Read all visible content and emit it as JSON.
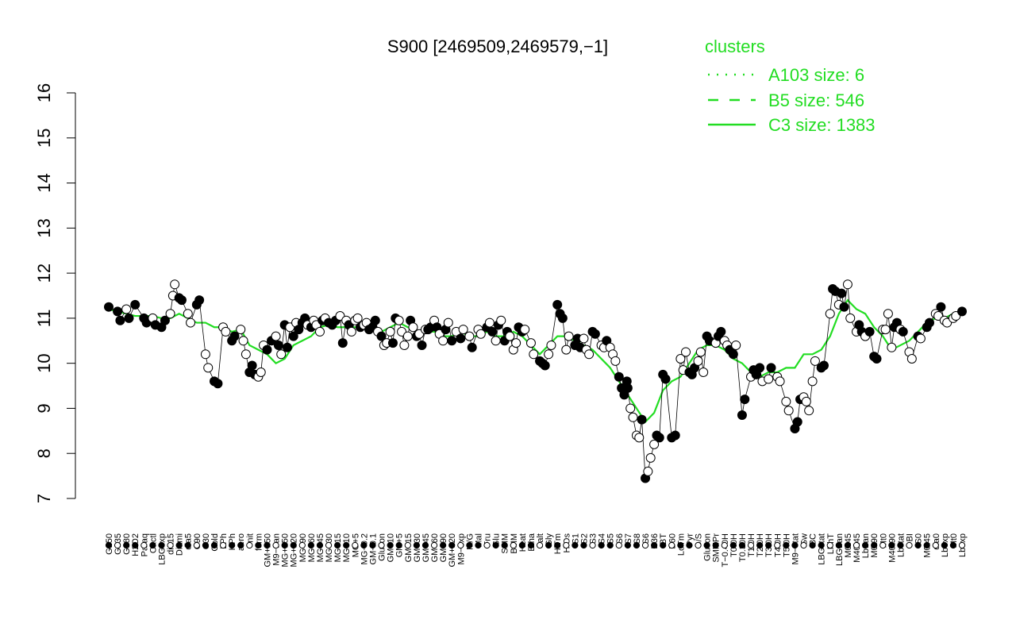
{
  "chart_data": {
    "type": "line",
    "title": "S900 [2469509,2469579,−1]",
    "xlabel": "",
    "ylabel": "",
    "ylim": [
      7,
      16
    ],
    "yticks": [
      "7",
      "8",
      "9",
      "10",
      "11",
      "12",
      "13",
      "14",
      "15",
      "16"
    ],
    "grid": false,
    "legend": {
      "title": "clusters",
      "placement": "top-right",
      "color": "#22dd22",
      "entries": [
        {
          "label": "A103 size: 6",
          "style": "dotted"
        },
        {
          "label": "B5 size: 546",
          "style": "dashed"
        },
        {
          "label": "C3 size: 1383",
          "style": "solid"
        }
      ]
    },
    "x_tick_labels": [
      "G150",
      "G135",
      "G180",
      "H2O2",
      "Paraq",
      "Oxctl",
      "LBGexp",
      "dia15",
      "Diami",
      "dia5",
      "C90",
      "C30",
      "Cold",
      "LPh",
      "HPh",
      "aero",
      "nit",
      "ferm",
      "GM+150",
      "M9−tran",
      "MG+150",
      "MG+120",
      "MG+90",
      "MG+60",
      "MG+45",
      "MG+30",
      "MG+15",
      "MG+10",
      "MG+5",
      "MG−0.2",
      "GM−0.1",
      "Glucon",
      "GM+10",
      "GM+5",
      "GM+15",
      "GM+30",
      "GM+45",
      "GM+60",
      "GM+90",
      "GM+120",
      "M9−exp",
      "M/G",
      "Mal",
      "Fru",
      "Glu",
      "SMM",
      "BMM",
      "Heat",
      "Etha",
      "Salt",
      "Gly",
      "HiTm",
      "HiOs",
      "S1",
      "S2",
      "S3",
      "S4",
      "S5",
      "S6",
      "S7",
      "S8",
      "S6",
      "B36",
      "BT",
      "B60",
      "LoTm",
      "Pyr",
      "G/S",
      "Glucon",
      "SMMPr",
      "T−0.40H",
      "T0.0H",
      "T0.30H",
      "T1.0H",
      "T2.0H",
      "T3.0H",
      "T4.0H",
      "T5.0H",
      "M9−stat",
      "Sw",
      "BC",
      "LBGstat",
      "LPhT",
      "LBGtran",
      "M0t45",
      "M40t45",
      "Lbtran",
      "M0t90",
      "Mt0",
      "M40t90",
      "Lbstat",
      "BI",
      "S0",
      "M0t45",
      "dia0",
      "Lbexp",
      "Mt0",
      "Lbexp"
    ],
    "series": [
      {
        "color": "#22dd22",
        "values": [
          11.2,
          11.15,
          11.1,
          11.05,
          11.05,
          11.05,
          11.0,
          11.0,
          11.1,
          11.0,
          10.9,
          10.9,
          10.8,
          10.8,
          10.7,
          10.75,
          10.4,
          10.3,
          10.2,
          10.0,
          10.1,
          10.4,
          10.5,
          10.6,
          10.8,
          10.85,
          10.8,
          10.8,
          10.8,
          10.8,
          10.8,
          10.7,
          10.8,
          10.9,
          10.8,
          10.7,
          10.7,
          10.7,
          10.6,
          10.6,
          10.7,
          10.6,
          10.6,
          10.7,
          10.6,
          10.6,
          10.7,
          10.6,
          10.4,
          10.2,
          10.4,
          10.6,
          10.6,
          10.5,
          10.4,
          10.3,
          10.1,
          9.9,
          9.6,
          9.3,
          9.0,
          8.7,
          8.9,
          9.4,
          9.6,
          9.7,
          10.0,
          10.3,
          10.4,
          10.4,
          10.3,
          10.1,
          10.0,
          9.8,
          9.7,
          9.8,
          9.8,
          9.9,
          9.9,
          10.2,
          10.2,
          10.3,
          10.6,
          11.1,
          11.4,
          11.2,
          11.1,
          10.8,
          10.6,
          10.3,
          10.4,
          10.5,
          10.7,
          10.9,
          11.0,
          11.0,
          11.1,
          11.1
        ]
      }
    ],
    "points": [
      [
        0,
        11.25,
        1
      ],
      [
        1,
        11.15,
        1
      ],
      [
        1.3,
        10.95,
        1
      ],
      [
        2,
        11.2,
        0
      ],
      [
        2.3,
        11.0,
        1
      ],
      [
        3,
        11.3,
        1
      ],
      [
        4,
        11.0,
        1
      ],
      [
        4.3,
        10.9,
        1
      ],
      [
        5,
        11.0,
        0
      ],
      [
        5.3,
        10.85,
        1
      ],
      [
        6,
        10.8,
        1
      ],
      [
        6.4,
        10.95,
        1
      ],
      [
        7,
        11.1,
        0
      ],
      [
        7.3,
        11.5,
        0
      ],
      [
        7.5,
        11.75,
        0
      ],
      [
        8,
        11.45,
        1
      ],
      [
        8.3,
        11.4,
        1
      ],
      [
        9,
        11.1,
        0
      ],
      [
        9.3,
        10.9,
        0
      ],
      [
        10,
        11.3,
        1
      ],
      [
        10.3,
        11.4,
        1
      ],
      [
        11,
        10.2,
        0
      ],
      [
        11.3,
        9.9,
        0
      ],
      [
        12,
        9.6,
        1
      ],
      [
        12.4,
        9.55,
        1
      ],
      [
        13,
        10.8,
        0
      ],
      [
        13.3,
        10.7,
        0
      ],
      [
        14,
        10.5,
        1
      ],
      [
        14.3,
        10.6,
        1
      ],
      [
        15,
        10.75,
        0
      ],
      [
        15.3,
        10.5,
        0
      ],
      [
        15.6,
        10.2,
        0
      ],
      [
        16,
        9.8,
        1
      ],
      [
        16.3,
        9.95,
        1
      ],
      [
        16.6,
        9.75,
        1
      ],
      [
        17,
        9.7,
        0
      ],
      [
        17.3,
        9.8,
        0
      ],
      [
        17.6,
        10.4,
        0
      ],
      [
        18,
        10.3,
        1
      ],
      [
        18.5,
        10.5,
        1
      ],
      [
        19,
        10.6,
        0
      ],
      [
        19.3,
        10.4,
        1
      ],
      [
        19.6,
        10.2,
        0
      ],
      [
        20,
        10.85,
        1
      ],
      [
        20.3,
        10.35,
        1
      ],
      [
        20.6,
        10.8,
        0
      ],
      [
        21,
        10.6,
        1
      ],
      [
        21.3,
        10.9,
        0
      ],
      [
        21.6,
        10.75,
        1
      ],
      [
        22,
        10.9,
        1
      ],
      [
        22.3,
        11.0,
        1
      ],
      [
        22.6,
        10.85,
        0
      ],
      [
        23,
        10.8,
        1
      ],
      [
        23.3,
        10.95,
        0
      ],
      [
        23.6,
        10.85,
        0
      ],
      [
        24,
        10.7,
        0
      ],
      [
        24.3,
        10.95,
        1
      ],
      [
        24.6,
        11.0,
        0
      ],
      [
        25,
        10.9,
        1
      ],
      [
        25.4,
        10.85,
        1
      ],
      [
        25.8,
        10.95,
        1
      ],
      [
        26.3,
        11.05,
        0
      ],
      [
        26.6,
        10.45,
        1
      ],
      [
        27,
        10.95,
        0
      ],
      [
        27.3,
        10.85,
        1
      ],
      [
        27.6,
        10.7,
        0
      ],
      [
        28,
        10.95,
        0
      ],
      [
        28.3,
        11.0,
        0
      ],
      [
        28.6,
        10.8,
        1
      ],
      [
        29,
        10.85,
        0
      ],
      [
        29.3,
        10.9,
        0
      ],
      [
        29.6,
        10.75,
        1
      ],
      [
        30,
        10.8,
        1
      ],
      [
        30.3,
        10.95,
        1
      ],
      [
        30.6,
        10.7,
        0
      ],
      [
        31,
        10.6,
        1
      ],
      [
        31.3,
        10.4,
        0
      ],
      [
        31.6,
        10.45,
        0
      ],
      [
        32,
        10.7,
        0
      ],
      [
        32.3,
        10.45,
        1
      ],
      [
        32.6,
        11.0,
        1
      ],
      [
        33,
        10.95,
        0
      ],
      [
        33.3,
        10.7,
        0
      ],
      [
        33.6,
        10.4,
        0
      ],
      [
        34,
        10.6,
        0
      ],
      [
        34.3,
        10.95,
        1
      ],
      [
        34.6,
        10.8,
        0
      ],
      [
        35,
        10.6,
        1
      ],
      [
        35.3,
        10.65,
        0
      ],
      [
        35.6,
        10.4,
        1
      ],
      [
        36,
        10.75,
        0
      ],
      [
        36.3,
        10.75,
        1
      ],
      [
        36.6,
        10.8,
        1
      ],
      [
        37,
        10.95,
        0
      ],
      [
        37.3,
        10.8,
        1
      ],
      [
        37.6,
        10.65,
        0
      ],
      [
        38,
        10.5,
        0
      ],
      [
        38.3,
        10.75,
        1
      ],
      [
        38.6,
        10.9,
        0
      ],
      [
        39,
        10.5,
        1
      ],
      [
        39.5,
        10.7,
        0
      ],
      [
        40,
        10.55,
        1
      ],
      [
        40.3,
        10.75,
        0
      ],
      [
        41,
        10.6,
        0
      ],
      [
        41.3,
        10.35,
        1
      ],
      [
        42,
        10.75,
        0
      ],
      [
        42.3,
        10.65,
        0
      ],
      [
        43,
        10.8,
        1
      ],
      [
        43.3,
        10.9,
        0
      ],
      [
        43.6,
        10.7,
        1
      ],
      [
        44,
        10.5,
        0
      ],
      [
        44.3,
        10.85,
        1
      ],
      [
        44.6,
        10.95,
        0
      ],
      [
        45,
        10.5,
        1
      ],
      [
        45.3,
        10.7,
        1
      ],
      [
        45.6,
        10.6,
        0
      ],
      [
        46,
        10.3,
        0
      ],
      [
        46.3,
        10.45,
        0
      ],
      [
        46.6,
        10.8,
        1
      ],
      [
        47,
        10.7,
        1
      ],
      [
        47.3,
        10.75,
        0
      ],
      [
        48,
        10.45,
        0
      ],
      [
        48.3,
        10.2,
        0
      ],
      [
        49,
        10.05,
        1
      ],
      [
        49.3,
        10.0,
        1
      ],
      [
        49.6,
        9.95,
        1
      ],
      [
        50,
        10.2,
        0
      ],
      [
        50.3,
        10.4,
        0
      ],
      [
        51,
        11.3,
        1
      ],
      [
        51.3,
        11.1,
        1
      ],
      [
        51.6,
        11.0,
        1
      ],
      [
        52,
        10.3,
        0
      ],
      [
        52.3,
        10.6,
        0
      ],
      [
        53,
        10.4,
        1
      ],
      [
        53.3,
        10.55,
        1
      ],
      [
        53.6,
        10.35,
        1
      ],
      [
        54,
        10.55,
        0
      ],
      [
        54.3,
        10.3,
        0
      ],
      [
        54.6,
        10.2,
        0
      ],
      [
        55,
        10.7,
        1
      ],
      [
        55.3,
        10.65,
        1
      ],
      [
        56,
        10.4,
        0
      ],
      [
        56.3,
        10.35,
        0
      ],
      [
        56.6,
        10.5,
        1
      ],
      [
        57,
        10.35,
        0
      ],
      [
        57.3,
        10.2,
        0
      ],
      [
        57.6,
        10.05,
        0
      ],
      [
        58,
        9.7,
        1
      ],
      [
        58.3,
        9.45,
        1
      ],
      [
        58.6,
        9.3,
        1
      ],
      [
        58.9,
        9.6,
        1
      ],
      [
        59,
        9.45,
        1
      ],
      [
        59.3,
        9.0,
        0
      ],
      [
        59.6,
        8.8,
        0
      ],
      [
        60,
        8.4,
        0
      ],
      [
        60.3,
        8.35,
        0
      ],
      [
        60.6,
        8.75,
        1
      ],
      [
        61,
        7.45,
        1
      ],
      [
        61.3,
        7.6,
        0
      ],
      [
        61.6,
        7.9,
        0
      ],
      [
        62,
        8.2,
        0
      ],
      [
        62.3,
        8.4,
        1
      ],
      [
        62.6,
        8.35,
        1
      ],
      [
        63,
        9.75,
        1
      ],
      [
        63.3,
        9.65,
        1
      ],
      [
        64,
        8.35,
        1
      ],
      [
        64.4,
        8.4,
        1
      ],
      [
        65,
        10.1,
        0
      ],
      [
        65.3,
        9.85,
        0
      ],
      [
        65.6,
        10.25,
        0
      ],
      [
        66,
        9.8,
        1
      ],
      [
        66.3,
        9.75,
        1
      ],
      [
        66.6,
        9.9,
        1
      ],
      [
        67,
        10.05,
        0
      ],
      [
        67.3,
        10.25,
        0
      ],
      [
        67.6,
        9.8,
        0
      ],
      [
        68,
        10.6,
        1
      ],
      [
        68.3,
        10.5,
        1
      ],
      [
        69,
        10.45,
        0
      ],
      [
        69.3,
        10.6,
        1
      ],
      [
        69.6,
        10.7,
        1
      ],
      [
        70,
        10.5,
        0
      ],
      [
        70.3,
        10.4,
        0
      ],
      [
        70.6,
        10.3,
        1
      ],
      [
        71,
        10.2,
        1
      ],
      [
        71.3,
        10.4,
        0
      ],
      [
        72,
        8.85,
        1
      ],
      [
        72.3,
        9.2,
        1
      ],
      [
        73,
        9.7,
        0
      ],
      [
        73.3,
        9.85,
        1
      ],
      [
        73.6,
        9.75,
        1
      ],
      [
        74,
        9.9,
        1
      ],
      [
        74.3,
        9.6,
        0
      ],
      [
        75,
        9.65,
        0
      ],
      [
        75.3,
        9.9,
        1
      ],
      [
        76,
        9.7,
        0
      ],
      [
        76.3,
        9.6,
        0
      ],
      [
        77,
        9.15,
        0
      ],
      [
        77.3,
        8.95,
        0
      ],
      [
        78,
        8.55,
        1
      ],
      [
        78.3,
        8.7,
        1
      ],
      [
        78.6,
        9.2,
        1
      ],
      [
        79,
        9.25,
        0
      ],
      [
        79.3,
        9.15,
        0
      ],
      [
        79.6,
        8.95,
        0
      ],
      [
        80,
        9.6,
        0
      ],
      [
        80.3,
        10.05,
        0
      ],
      [
        81,
        9.9,
        1
      ],
      [
        81.3,
        9.95,
        1
      ],
      [
        82,
        11.1,
        0
      ],
      [
        82.3,
        11.65,
        1
      ],
      [
        82.6,
        11.6,
        1
      ],
      [
        83,
        11.3,
        0
      ],
      [
        83.3,
        11.55,
        1
      ],
      [
        83.6,
        11.25,
        1
      ],
      [
        84,
        11.75,
        0
      ],
      [
        84.3,
        11.0,
        0
      ],
      [
        85,
        10.7,
        0
      ],
      [
        85.3,
        10.85,
        1
      ],
      [
        85.6,
        10.7,
        1
      ],
      [
        86,
        10.6,
        0
      ],
      [
        86.5,
        10.7,
        1
      ],
      [
        87,
        10.15,
        1
      ],
      [
        87.3,
        10.1,
        1
      ],
      [
        88,
        10.75,
        0
      ],
      [
        88.3,
        10.75,
        0
      ],
      [
        88.6,
        11.1,
        0
      ],
      [
        89,
        10.35,
        0
      ],
      [
        89.3,
        10.8,
        1
      ],
      [
        89.6,
        10.9,
        1
      ],
      [
        90,
        10.75,
        0
      ],
      [
        90.3,
        10.7,
        1
      ],
      [
        91,
        10.25,
        0
      ],
      [
        91.3,
        10.1,
        0
      ],
      [
        92,
        10.6,
        1
      ],
      [
        92.3,
        10.55,
        0
      ],
      [
        93,
        10.8,
        1
      ],
      [
        93.3,
        10.9,
        1
      ],
      [
        94,
        11.1,
        0
      ],
      [
        94.3,
        11.05,
        0
      ],
      [
        94.6,
        11.25,
        1
      ],
      [
        95,
        10.95,
        0
      ],
      [
        95.3,
        10.9,
        0
      ],
      [
        96,
        11.0,
        0
      ],
      [
        96.3,
        11.05,
        0
      ],
      [
        97,
        11.15,
        1
      ]
    ]
  }
}
